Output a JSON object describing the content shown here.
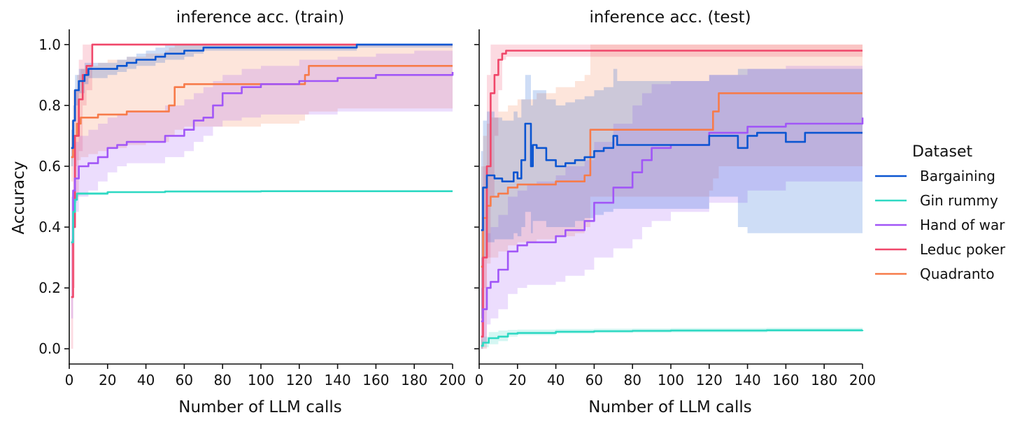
{
  "chart_data": [
    {
      "type": "line",
      "title": "inference acc. (train)",
      "xlabel": "Number of LLM calls",
      "ylabel": "Accuracy",
      "xlim": [
        0,
        200
      ],
      "ylim": [
        -0.05,
        1.05
      ],
      "xticks": [
        0,
        20,
        40,
        60,
        80,
        100,
        120,
        140,
        160,
        180,
        200
      ],
      "yticks": [
        0.0,
        0.2,
        0.4,
        0.6,
        0.8,
        1.0
      ],
      "xtick_labels": [
        "0",
        "20",
        "40",
        "60",
        "80",
        "100",
        "120",
        "140",
        "160",
        "180",
        "200"
      ],
      "ytick_labels": [
        "0.0",
        "0.2",
        "0.4",
        "0.6",
        "0.8",
        "1.0"
      ],
      "series": [
        {
          "name": "Bargaining",
          "x": [
            1,
            2,
            3,
            5,
            8,
            10,
            20,
            25,
            30,
            35,
            40,
            45,
            50,
            55,
            60,
            65,
            70,
            80,
            100,
            120,
            140,
            150,
            200
          ],
          "y": [
            0.66,
            0.75,
            0.85,
            0.88,
            0.9,
            0.92,
            0.92,
            0.93,
            0.94,
            0.95,
            0.95,
            0.96,
            0.97,
            0.97,
            0.98,
            0.98,
            0.99,
            0.99,
            0.99,
            0.99,
            0.99,
            1.0,
            1.0
          ],
          "lower": [
            0.6,
            0.7,
            0.8,
            0.84,
            0.87,
            0.89,
            0.9,
            0.91,
            0.92,
            0.93,
            0.93,
            0.94,
            0.95,
            0.95,
            0.96,
            0.97,
            0.98,
            0.98,
            0.98,
            0.98,
            0.98,
            0.99,
            0.99
          ],
          "upper": [
            0.72,
            0.8,
            0.9,
            0.92,
            0.94,
            0.94,
            0.94,
            0.95,
            0.96,
            0.97,
            0.98,
            0.99,
            1.0,
            1.0,
            1.0,
            1.0,
            1.0,
            1.0,
            1.0,
            1.0,
            1.0,
            1.0,
            1.0
          ]
        },
        {
          "name": "Gin rummy",
          "x": [
            1,
            2,
            3,
            4,
            10,
            20,
            50,
            100,
            150,
            200
          ],
          "y": [
            0.35,
            0.45,
            0.49,
            0.51,
            0.51,
            0.515,
            0.517,
            0.518,
            0.518,
            0.518
          ],
          "lower": [
            0.34,
            0.44,
            0.48,
            0.505,
            0.505,
            0.512,
            0.514,
            0.515,
            0.515,
            0.515
          ],
          "upper": [
            0.36,
            0.46,
            0.5,
            0.515,
            0.515,
            0.518,
            0.52,
            0.521,
            0.521,
            0.521
          ]
        },
        {
          "name": "Hand of war",
          "x": [
            1,
            2,
            3,
            5,
            10,
            15,
            20,
            25,
            30,
            40,
            50,
            55,
            60,
            65,
            70,
            75,
            80,
            90,
            100,
            120,
            140,
            160,
            180,
            200
          ],
          "y": [
            0.35,
            0.52,
            0.56,
            0.6,
            0.61,
            0.63,
            0.66,
            0.67,
            0.68,
            0.68,
            0.7,
            0.7,
            0.72,
            0.75,
            0.76,
            0.8,
            0.84,
            0.86,
            0.87,
            0.88,
            0.89,
            0.9,
            0.9,
            0.91
          ],
          "lower": [
            0.1,
            0.4,
            0.45,
            0.5,
            0.52,
            0.55,
            0.58,
            0.6,
            0.61,
            0.61,
            0.63,
            0.63,
            0.65,
            0.68,
            0.7,
            0.73,
            0.75,
            0.76,
            0.77,
            0.77,
            0.78,
            0.78,
            0.78,
            0.78
          ],
          "upper": [
            0.5,
            0.64,
            0.68,
            0.7,
            0.72,
            0.74,
            0.76,
            0.77,
            0.78,
            0.78,
            0.8,
            0.8,
            0.82,
            0.84,
            0.86,
            0.88,
            0.9,
            0.92,
            0.93,
            0.95,
            0.96,
            0.97,
            0.98,
            0.99
          ]
        },
        {
          "name": "Leduc poker",
          "x": [
            1,
            2,
            3,
            5,
            7,
            9,
            12,
            20,
            50,
            100,
            150,
            200
          ],
          "y": [
            0.17,
            0.4,
            0.7,
            0.82,
            0.9,
            0.93,
            1.0,
            1.0,
            1.0,
            1.0,
            1.0,
            1.0
          ],
          "lower": [
            0.0,
            0.2,
            0.5,
            0.65,
            0.8,
            0.85,
            1.0,
            1.0,
            1.0,
            1.0,
            1.0,
            1.0
          ],
          "upper": [
            0.35,
            0.6,
            0.85,
            0.95,
            1.0,
            1.0,
            1.0,
            1.0,
            1.0,
            1.0,
            1.0,
            1.0
          ]
        },
        {
          "name": "Quadranto",
          "x": [
            1,
            2,
            4,
            6,
            10,
            15,
            20,
            30,
            40,
            50,
            52,
            55,
            60,
            70,
            80,
            100,
            120,
            123,
            125,
            140,
            160,
            200
          ],
          "y": [
            0.63,
            0.7,
            0.74,
            0.76,
            0.76,
            0.77,
            0.77,
            0.78,
            0.78,
            0.78,
            0.8,
            0.86,
            0.87,
            0.87,
            0.87,
            0.87,
            0.87,
            0.9,
            0.93,
            0.93,
            0.93,
            0.93
          ],
          "lower": [
            0.55,
            0.6,
            0.62,
            0.63,
            0.64,
            0.65,
            0.66,
            0.67,
            0.68,
            0.68,
            0.7,
            0.72,
            0.73,
            0.73,
            0.73,
            0.74,
            0.75,
            0.77,
            0.78,
            0.79,
            0.79,
            0.79
          ],
          "upper": [
            0.75,
            0.85,
            0.9,
            0.92,
            0.93,
            0.94,
            0.95,
            0.96,
            0.97,
            0.98,
            0.99,
            1.0,
            1.0,
            1.0,
            1.0,
            1.0,
            1.0,
            1.0,
            1.0,
            1.0,
            1.0,
            1.0
          ]
        }
      ]
    },
    {
      "type": "line",
      "title": "inference acc. (test)",
      "xlabel": "Number of LLM calls",
      "ylabel": "",
      "xlim": [
        0,
        200
      ],
      "ylim": [
        -0.05,
        1.05
      ],
      "xticks": [
        0,
        20,
        40,
        60,
        80,
        100,
        120,
        140,
        160,
        180,
        200
      ],
      "yticks": [
        0.0,
        0.2,
        0.4,
        0.6,
        0.8,
        1.0
      ],
      "xtick_labels": [
        "0",
        "20",
        "40",
        "60",
        "80",
        "100",
        "120",
        "140",
        "160",
        "180",
        "200"
      ],
      "ytick_labels": [],
      "series": [
        {
          "name": "Bargaining",
          "x": [
            1,
            2,
            4,
            8,
            12,
            15,
            18,
            20,
            22,
            24,
            25,
            27,
            28,
            30,
            35,
            40,
            45,
            50,
            55,
            60,
            65,
            70,
            72,
            75,
            100,
            120,
            135,
            140,
            145,
            160,
            170,
            200
          ],
          "y": [
            0.39,
            0.53,
            0.57,
            0.56,
            0.55,
            0.55,
            0.58,
            0.56,
            0.62,
            0.74,
            0.74,
            0.6,
            0.67,
            0.66,
            0.62,
            0.6,
            0.61,
            0.62,
            0.63,
            0.65,
            0.66,
            0.7,
            0.67,
            0.67,
            0.67,
            0.7,
            0.66,
            0.7,
            0.71,
            0.68,
            0.71,
            0.71
          ],
          "lower": [
            0.1,
            0.3,
            0.35,
            0.36,
            0.36,
            0.36,
            0.38,
            0.37,
            0.4,
            0.45,
            0.45,
            0.38,
            0.42,
            0.42,
            0.4,
            0.4,
            0.4,
            0.42,
            0.43,
            0.44,
            0.45,
            0.46,
            0.46,
            0.46,
            0.46,
            0.5,
            0.4,
            0.38,
            0.38,
            0.38,
            0.38,
            0.38
          ],
          "upper": [
            0.65,
            0.75,
            0.78,
            0.76,
            0.75,
            0.75,
            0.78,
            0.76,
            0.82,
            0.9,
            0.9,
            0.8,
            0.85,
            0.85,
            0.82,
            0.8,
            0.81,
            0.82,
            0.83,
            0.85,
            0.86,
            0.92,
            0.88,
            0.88,
            0.88,
            0.9,
            0.92,
            0.92,
            0.92,
            0.92,
            0.92,
            0.92
          ]
        },
        {
          "name": "Gin rummy",
          "x": [
            1,
            2,
            5,
            10,
            15,
            20,
            40,
            60,
            80,
            100,
            150,
            200
          ],
          "y": [
            0.01,
            0.02,
            0.035,
            0.04,
            0.05,
            0.052,
            0.056,
            0.058,
            0.059,
            0.06,
            0.061,
            0.062
          ],
          "lower": [
            0.0,
            0.005,
            0.015,
            0.025,
            0.04,
            0.045,
            0.05,
            0.052,
            0.053,
            0.054,
            0.055,
            0.055
          ],
          "upper": [
            0.03,
            0.04,
            0.055,
            0.06,
            0.062,
            0.063,
            0.065,
            0.066,
            0.067,
            0.068,
            0.069,
            0.07
          ]
        },
        {
          "name": "Hand of war",
          "x": [
            1,
            2,
            4,
            6,
            10,
            15,
            20,
            25,
            30,
            40,
            45,
            50,
            55,
            60,
            65,
            70,
            75,
            80,
            85,
            90,
            100,
            120,
            140,
            160,
            200
          ],
          "y": [
            0.09,
            0.13,
            0.2,
            0.22,
            0.26,
            0.32,
            0.34,
            0.35,
            0.35,
            0.37,
            0.39,
            0.39,
            0.42,
            0.48,
            0.48,
            0.53,
            0.53,
            0.58,
            0.62,
            0.66,
            0.67,
            0.71,
            0.73,
            0.74,
            0.76
          ],
          "lower": [
            0.0,
            0.02,
            0.08,
            0.1,
            0.13,
            0.18,
            0.2,
            0.21,
            0.21,
            0.22,
            0.24,
            0.24,
            0.26,
            0.3,
            0.3,
            0.33,
            0.33,
            0.36,
            0.4,
            0.42,
            0.45,
            0.48,
            0.52,
            0.55,
            0.55
          ],
          "upper": [
            0.2,
            0.3,
            0.38,
            0.4,
            0.44,
            0.5,
            0.52,
            0.54,
            0.55,
            0.57,
            0.6,
            0.6,
            0.62,
            0.68,
            0.68,
            0.74,
            0.74,
            0.8,
            0.84,
            0.87,
            0.88,
            0.9,
            0.92,
            0.93,
            0.95
          ]
        },
        {
          "name": "Leduc poker",
          "x": [
            1,
            2,
            4,
            6,
            8,
            10,
            12,
            14,
            20,
            50,
            100,
            150,
            200
          ],
          "y": [
            0.04,
            0.3,
            0.6,
            0.84,
            0.9,
            0.95,
            0.97,
            0.98,
            0.98,
            0.98,
            0.98,
            0.98,
            0.98
          ],
          "lower": [
            0.0,
            0.0,
            0.3,
            0.5,
            0.7,
            0.85,
            0.95,
            0.96,
            0.96,
            0.96,
            0.96,
            0.96,
            0.96
          ],
          "upper": [
            0.3,
            0.6,
            0.9,
            1.0,
            1.0,
            1.0,
            1.0,
            1.0,
            1.0,
            1.0,
            1.0,
            1.0,
            1.0
          ]
        },
        {
          "name": "Quadranto",
          "x": [
            1,
            2,
            4,
            6,
            10,
            15,
            20,
            30,
            40,
            50,
            55,
            58,
            60,
            80,
            100,
            120,
            122,
            125,
            140,
            160,
            200
          ],
          "y": [
            0.27,
            0.43,
            0.47,
            0.5,
            0.51,
            0.53,
            0.54,
            0.54,
            0.55,
            0.55,
            0.57,
            0.72,
            0.72,
            0.72,
            0.72,
            0.72,
            0.78,
            0.84,
            0.84,
            0.84,
            0.84
          ],
          "lower": [
            0.0,
            0.2,
            0.28,
            0.3,
            0.32,
            0.34,
            0.35,
            0.36,
            0.37,
            0.38,
            0.4,
            0.5,
            0.5,
            0.5,
            0.5,
            0.52,
            0.56,
            0.6,
            0.6,
            0.6,
            0.6
          ],
          "upper": [
            0.6,
            0.7,
            0.74,
            0.76,
            0.78,
            0.8,
            0.82,
            0.84,
            0.86,
            0.88,
            0.9,
            1.0,
            1.0,
            1.0,
            1.0,
            1.0,
            1.0,
            1.0,
            1.0,
            1.0,
            1.0
          ]
        }
      ]
    }
  ],
  "legend": {
    "title": "Dataset",
    "placement": "right",
    "items": [
      {
        "label": "Bargaining",
        "color": "#0B55D1"
      },
      {
        "label": "Gin rummy",
        "color": "#2ED9C3"
      },
      {
        "label": "Hand of war",
        "color": "#A156F7"
      },
      {
        "label": "Leduc poker",
        "color": "#F0476A"
      },
      {
        "label": "Quadranto",
        "color": "#F77B4A"
      }
    ]
  },
  "colors": {
    "Bargaining": "#0B55D1",
    "Gin rummy": "#2ED9C3",
    "Hand of war": "#A156F7",
    "Leduc poker": "#F0476A",
    "Quadranto": "#F77B4A"
  }
}
